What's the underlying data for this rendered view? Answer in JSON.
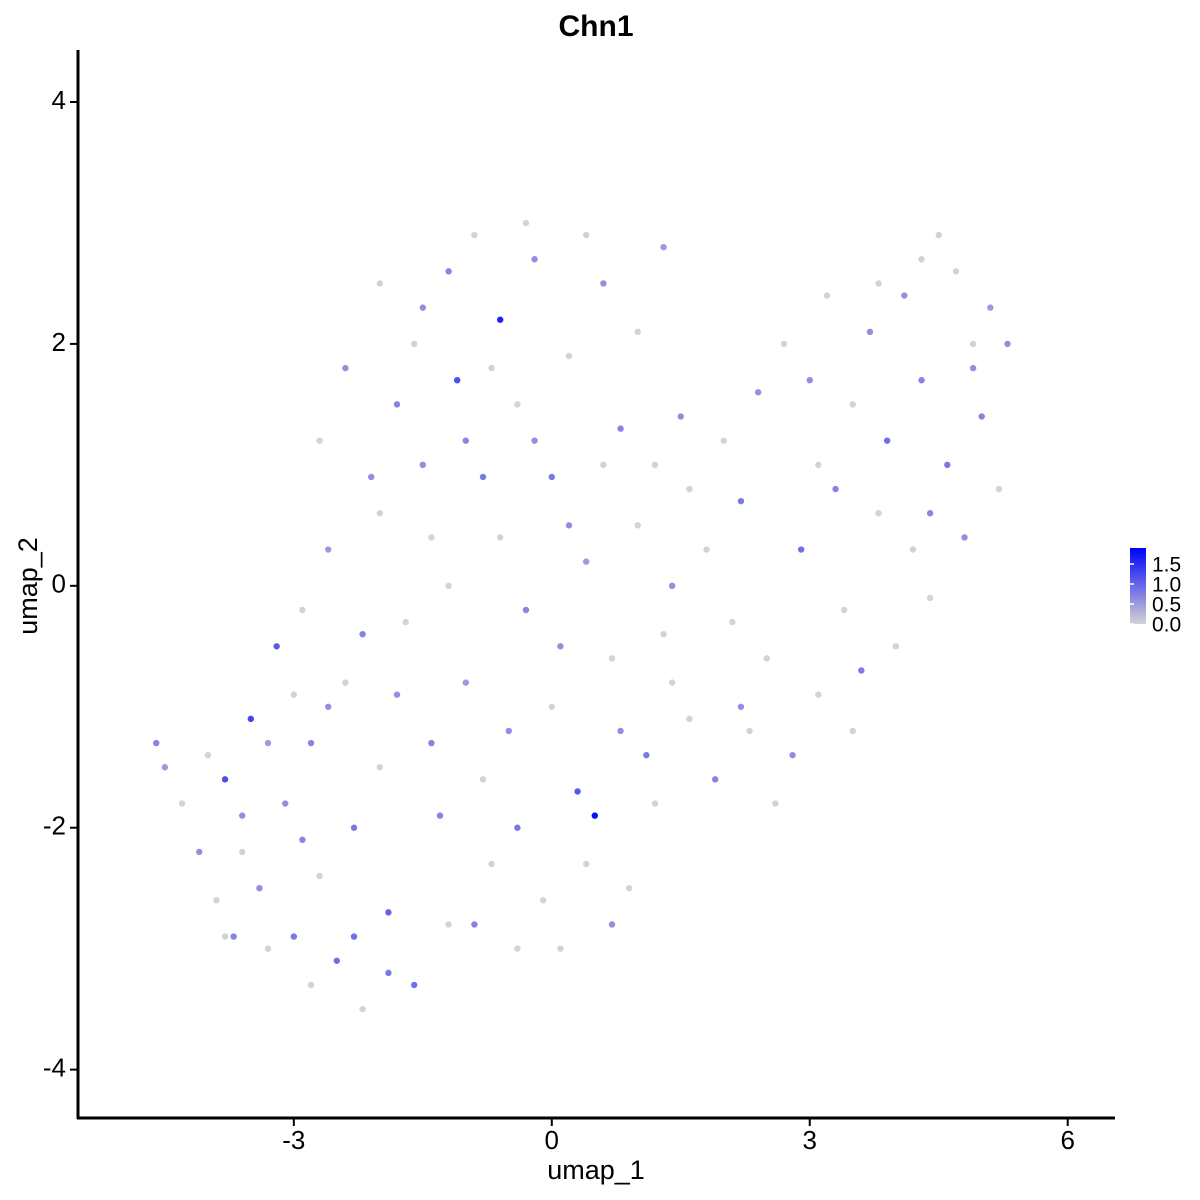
{
  "chart_data": {
    "type": "scatter",
    "title": "Chn1",
    "x_label": "umap_1",
    "y_label": "umap_2",
    "xlim": [
      -5.51,
      6.55
    ],
    "ylim": [
      -4.4,
      4.43
    ],
    "xticks": [
      -3,
      0,
      3,
      6
    ],
    "yticks": [
      -4,
      -2,
      0,
      2,
      4
    ],
    "low_color": "#d3d3d3",
    "high_color": "#0000ff",
    "clim": [
      0,
      1.9
    ],
    "colorbar_ticks": [
      {
        "value": 0,
        "label": "0.0"
      },
      0.5,
      {
        "value": 1,
        "label": "1.0"
      },
      1.5
    ],
    "x": [
      -4.6,
      -4.5,
      -4.3,
      -4.1,
      -3.9,
      -3.8,
      -3.7,
      -3.6,
      -3.5,
      -3.4,
      -3.3,
      -3.2,
      -3.1,
      -3.0,
      -2.9,
      -2.8,
      -2.7,
      -2.6,
      -2.5,
      -2.4,
      -2.3,
      -2.2,
      -2.1,
      -2.0,
      -1.9,
      -1.8,
      -1.7,
      -1.6,
      -1.5,
      -1.4,
      -1.3,
      -1.2,
      -1.1,
      -1.0,
      -0.9,
      -0.8,
      -0.7,
      -0.6,
      -0.5,
      -0.4,
      -0.3,
      -0.2,
      -0.1,
      0.0,
      0.1,
      0.2,
      0.3,
      0.4,
      0.5,
      0.6,
      0.7,
      0.8,
      0.9,
      1.0,
      1.1,
      1.2,
      1.3,
      1.4,
      1.5,
      1.6,
      1.8,
      1.9,
      2.0,
      2.1,
      2.2,
      2.3,
      2.4,
      2.5,
      2.7,
      2.8,
      2.9,
      3.0,
      3.1,
      3.2,
      3.3,
      3.4,
      3.5,
      3.6,
      3.7,
      3.8,
      3.9,
      4.0,
      4.1,
      4.2,
      4.3,
      4.4,
      4.5,
      4.6,
      4.7,
      4.8,
      4.9,
      5.0,
      5.1,
      5.2,
      5.3,
      -3.8,
      -3.3,
      -2.9,
      -2.6,
      -2.2,
      -2.0,
      -1.8,
      -1.6,
      -1.4,
      -1.2,
      -1.0,
      -0.8,
      -0.6,
      -0.4,
      -0.2,
      0.0,
      0.2,
      0.4,
      0.6,
      0.8,
      1.0,
      1.2,
      1.4,
      1.6,
      -2.4,
      -2.0,
      -1.2,
      -0.3,
      0.4,
      -2.7,
      -3.0,
      -3.6,
      -4.0,
      3.5,
      2.6,
      4.4,
      4.9,
      4.3,
      3.8,
      -0.9,
      -0.4,
      0.7,
      -1.9,
      -2.8,
      -2.3,
      -1.5,
      -0.7,
      0.1,
      1.3,
      2.2,
      3.1
    ],
    "y": [
      -1.3,
      -1.5,
      -1.8,
      -2.2,
      -2.6,
      -1.6,
      -2.9,
      -2.2,
      -1.1,
      -2.5,
      -3.0,
      -0.5,
      -1.8,
      -2.9,
      -0.2,
      -1.3,
      -2.4,
      0.3,
      -3.1,
      -0.8,
      -2.0,
      -3.5,
      0.9,
      -1.5,
      -2.7,
      1.5,
      -0.3,
      -3.3,
      2.3,
      0.4,
      -1.9,
      -2.8,
      1.7,
      -0.8,
      2.9,
      0.9,
      -2.3,
      2.2,
      -1.2,
      1.5,
      -0.2,
      2.7,
      -2.6,
      0.9,
      -3.0,
      1.9,
      -1.7,
      0.2,
      -1.9,
      2.5,
      -0.6,
      1.3,
      -2.5,
      0.5,
      -1.4,
      1.0,
      2.8,
      -0.8,
      1.4,
      -1.1,
      0.3,
      -1.6,
      1.2,
      -0.3,
      0.7,
      -1.2,
      1.6,
      -0.6,
      2.0,
      -1.4,
      0.3,
      1.7,
      -0.9,
      2.4,
      0.8,
      -0.2,
      1.5,
      -0.7,
      2.1,
      0.6,
      1.2,
      -0.5,
      2.4,
      0.3,
      1.7,
      -0.1,
      2.9,
      1.0,
      2.6,
      0.4,
      2.0,
      1.4,
      2.3,
      0.8,
      2.0,
      -2.9,
      -1.3,
      -2.1,
      -1.0,
      -0.4,
      0.6,
      -0.9,
      2.0,
      -1.3,
      0.0,
      1.2,
      -1.6,
      0.4,
      -2.0,
      1.2,
      -1.0,
      0.5,
      -2.3,
      1.0,
      -1.2,
      2.1,
      -1.8,
      0.0,
      0.8,
      1.8,
      2.5,
      2.6,
      3.0,
      2.9,
      1.2,
      -0.9,
      -1.9,
      -1.4,
      -1.2,
      -1.8,
      0.6,
      1.8,
      2.7,
      2.5,
      -2.8,
      -3.0,
      -2.8,
      -3.2,
      -3.3,
      -2.9,
      1.0,
      1.8,
      -0.5,
      -0.4,
      -1.0,
      1.0
    ],
    "values": [
      0.7,
      0.5,
      0,
      0.6,
      0,
      1.2,
      0.7,
      0,
      1.3,
      0.6,
      0,
      1.1,
      0.6,
      0.8,
      0,
      0.7,
      0,
      0.5,
      0.9,
      0,
      0.8,
      0,
      0.6,
      0,
      1.0,
      0.7,
      0,
      0.9,
      0.6,
      0,
      0.7,
      0,
      1.2,
      0.5,
      0,
      0.8,
      0,
      1.6,
      0.6,
      0,
      0.7,
      0.6,
      0,
      0.8,
      0,
      0,
      1.1,
      0.5,
      1.8,
      0.6,
      0,
      0.7,
      0,
      0,
      0.8,
      0,
      0.5,
      0,
      0.6,
      0,
      0,
      0.7,
      0,
      0,
      0.8,
      0,
      0.6,
      0,
      0,
      0.6,
      0.9,
      0.6,
      0,
      0,
      0.7,
      0,
      0,
      0.8,
      0.6,
      0,
      0.9,
      0,
      0.6,
      0,
      0.7,
      0,
      0,
      0.8,
      0,
      0.6,
      0,
      0.7,
      0.5,
      0,
      0.6,
      0,
      0.5,
      0.7,
      0.6,
      0.7,
      0,
      0.6,
      0,
      0.7,
      0,
      0.7,
      0,
      0,
      0.8,
      0.6,
      0,
      0.6,
      0,
      0,
      0.6,
      0,
      0,
      0.6,
      0,
      0.6,
      0,
      0.7,
      0,
      0,
      0,
      0,
      0.6,
      0,
      0,
      0,
      0.7,
      0.6,
      0,
      0,
      0.7,
      0,
      0.6,
      0.8,
      0,
      0.9,
      0.6,
      0,
      0.6,
      0,
      0.6,
      0
    ]
  }
}
